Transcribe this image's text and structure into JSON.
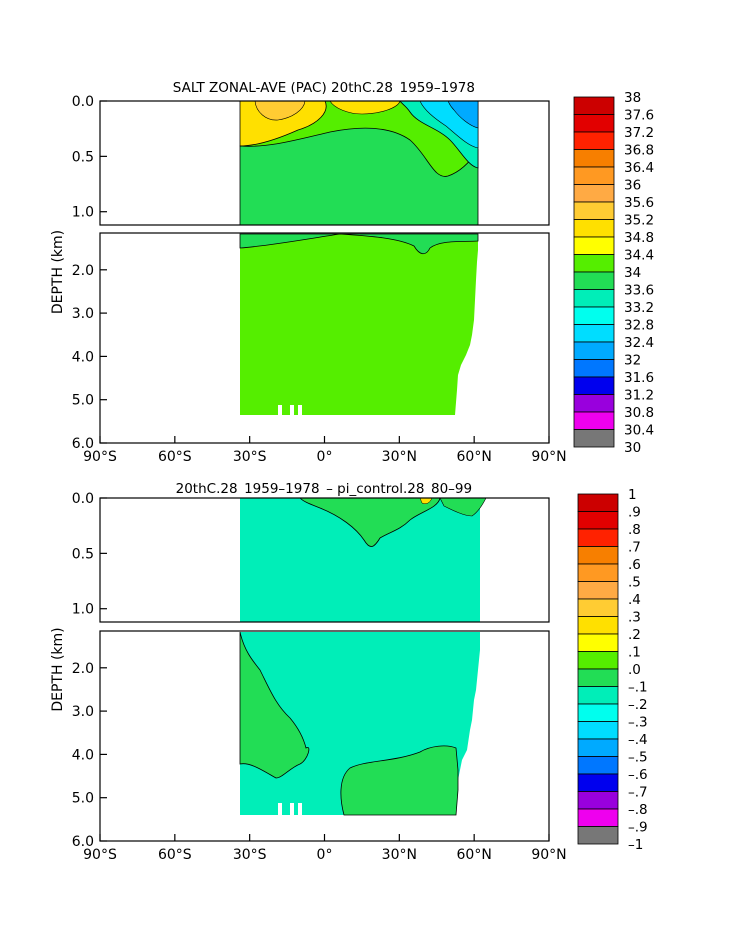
{
  "chart_data": [
    {
      "type": "heatmap",
      "title": "SALT ZONAL-AVE (PAC) 20thC.28  1959–1978 ",
      "ylabel": "DEPTH (km)",
      "x_ticks": [
        "90°S",
        "60°S",
        "30°S",
        "0°",
        "30°N",
        "60°N",
        "90°N"
      ],
      "xlim": [
        -90,
        90
      ],
      "upper_y_ticks": [
        "0.0",
        "0.5",
        "1.0"
      ],
      "lower_y_ticks": [
        "2.0",
        "3.0",
        "4.0",
        "5.0",
        "6.0"
      ],
      "ylim_km": [
        0,
        6
      ],
      "colorbar_labels": [
        "38",
        "37.6",
        "37.2",
        "36.8",
        "36.4",
        "36",
        "35.6",
        "35.2",
        "34.8",
        "34.4",
        "34",
        "33.6",
        "33.2",
        "32.8",
        "32.4",
        "32",
        "31.6",
        "31.2",
        "30.8",
        "30.4",
        "30"
      ],
      "colorbar_colors": [
        "#cc0000",
        "#e20000",
        "#ff2200",
        "#f77f00",
        "#ff9922",
        "#ffaa44",
        "#ffcc33",
        "#ffe000",
        "#ffff00",
        "#55ee00",
        "#22dd55",
        "#00eeb8",
        "#00ffee",
        "#00ddff",
        "#00aaff",
        "#0077ff",
        "#0000ee",
        "#9900dd",
        "#ee00ee",
        "#cccccc",
        "#777777"
      ],
      "dominant_values": {
        "deep_ocean": "34.4-34.8",
        "surface_subtropics": "35.2-36.0",
        "north_pacific_surface": "32.0-33.6"
      }
    },
    {
      "type": "heatmap",
      "title": "20thC.28  1959–1978  – pi_control.28  80–99 ",
      "ylabel": "DEPTH (km)",
      "x_ticks": [
        "90°S",
        "60°S",
        "30°S",
        "0°",
        "30°N",
        "60°N",
        "90°N"
      ],
      "xlim": [
        -90,
        90
      ],
      "upper_y_ticks": [
        "0.0",
        "0.5",
        "1.0"
      ],
      "lower_y_ticks": [
        "2.0",
        "3.0",
        "4.0",
        "5.0",
        "6.0"
      ],
      "ylim_km": [
        0,
        6
      ],
      "colorbar_labels": [
        "1",
        ".9",
        ".8",
        ".7",
        ".6",
        ".5",
        ".4",
        ".3",
        ".2",
        ".1",
        ".0",
        "–.1",
        "–.2",
        "–.3",
        "–.4",
        "–.5",
        "–.6",
        "–.7",
        "–.8",
        "–.9",
        "–1"
      ],
      "colorbar_colors": [
        "#cc0000",
        "#e20000",
        "#ff2200",
        "#f77f00",
        "#ff9922",
        "#ffaa44",
        "#ffcc33",
        "#ffe000",
        "#ffff00",
        "#55ee00",
        "#22dd55",
        "#00eeb8",
        "#00ffee",
        "#00ddff",
        "#00aaff",
        "#0077ff",
        "#0000ee",
        "#9900dd",
        "#ee00ee",
        "#cccccc",
        "#777777"
      ],
      "dominant_values": {
        "most_of_domain": "-0.1 to 0.0",
        "southern_deep_and_bottom": "0.0 to 0.1"
      }
    }
  ]
}
